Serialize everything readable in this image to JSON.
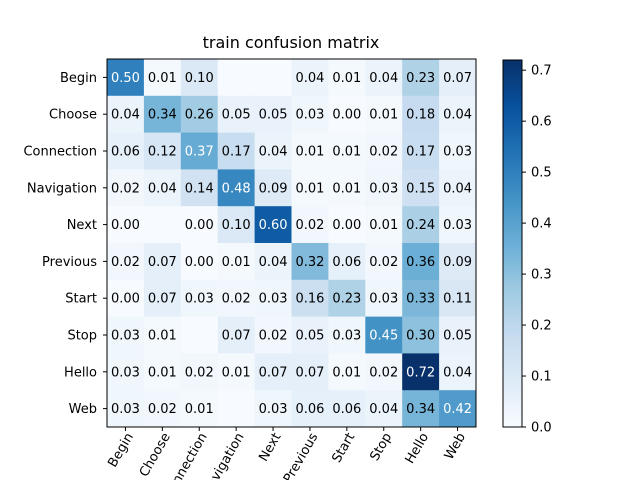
{
  "chart_data": {
    "type": "heatmap",
    "title": "train confusion matrix",
    "row_labels": [
      "Begin",
      "Choose",
      "Connection",
      "Navigation",
      "Next",
      "Previous",
      "Start",
      "Stop",
      "Hello",
      "Web"
    ],
    "col_labels": [
      "Begin",
      "Choose",
      "Connection",
      "Navigation",
      "Next",
      "Previous",
      "Start",
      "Stop",
      "Hello",
      "Web"
    ],
    "values": [
      [
        0.5,
        0.01,
        0.1,
        null,
        null,
        0.04,
        0.01,
        0.04,
        0.23,
        0.07
      ],
      [
        0.04,
        0.34,
        0.26,
        0.05,
        0.05,
        0.03,
        0.0,
        0.01,
        0.18,
        0.04
      ],
      [
        0.06,
        0.12,
        0.37,
        0.17,
        0.04,
        0.01,
        0.01,
        0.02,
        0.17,
        0.03
      ],
      [
        0.02,
        0.04,
        0.14,
        0.48,
        0.09,
        0.01,
        0.01,
        0.03,
        0.15,
        0.04
      ],
      [
        0.0,
        null,
        0.0,
        0.1,
        0.6,
        0.02,
        0.0,
        0.01,
        0.24,
        0.03
      ],
      [
        0.02,
        0.07,
        0.0,
        0.01,
        0.04,
        0.32,
        0.06,
        0.02,
        0.36,
        0.09
      ],
      [
        0.0,
        0.07,
        0.03,
        0.02,
        0.03,
        0.16,
        0.23,
        0.03,
        0.33,
        0.11
      ],
      [
        0.03,
        0.01,
        null,
        0.07,
        0.02,
        0.05,
        0.03,
        0.45,
        0.3,
        0.05
      ],
      [
        0.03,
        0.01,
        0.02,
        0.01,
        0.07,
        0.07,
        0.01,
        0.02,
        0.72,
        0.04
      ],
      [
        0.03,
        0.02,
        0.01,
        null,
        0.03,
        0.06,
        0.06,
        0.04,
        0.34,
        0.42
      ]
    ],
    "colormap": "Blues",
    "vmin": 0.0,
    "vmax": 0.72,
    "colorbar_ticks": [
      "0.0",
      "0.1",
      "0.2",
      "0.3",
      "0.4",
      "0.5",
      "0.6",
      "0.7"
    ],
    "grid": false,
    "legend": "colorbar-right"
  }
}
